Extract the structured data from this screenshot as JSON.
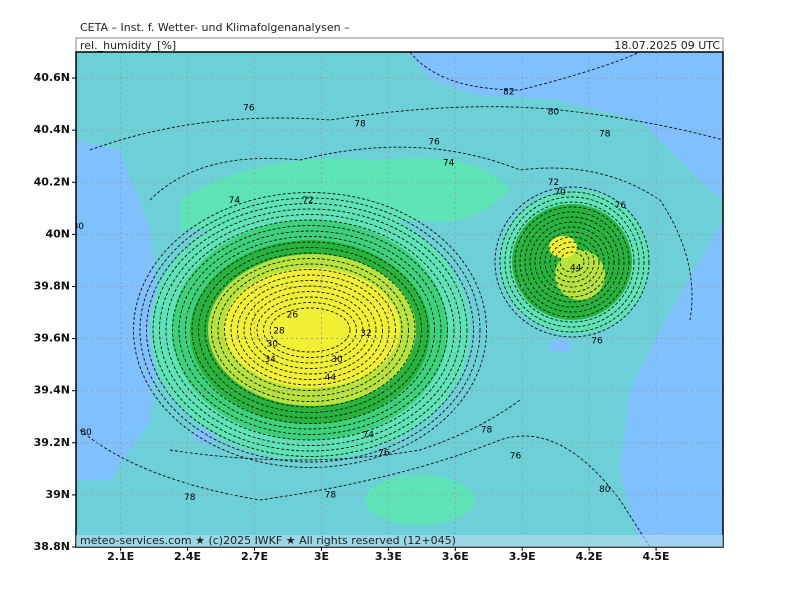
{
  "header": {
    "institute": "CETA – Inst. f. Wetter- und Klimafolgenanalysen –",
    "field": "rel._humidity_[%]",
    "valid": "18.07.2025 09 UTC"
  },
  "footer": "meteo-services.com ★ (c)2025 IWKF ★ All rights reserved (12+045)",
  "map": {
    "xlim": [
      1.9,
      4.8
    ],
    "ylim": [
      38.8,
      40.7
    ],
    "grid": true,
    "xticks": [
      {
        "value": 2.1,
        "label": "2.1E"
      },
      {
        "value": 2.4,
        "label": "2.4E"
      },
      {
        "value": 2.7,
        "label": "2.7E"
      },
      {
        "value": 3.0,
        "label": "3E"
      },
      {
        "value": 3.3,
        "label": "3.3E"
      },
      {
        "value": 3.6,
        "label": "3.6E"
      },
      {
        "value": 3.9,
        "label": "3.9E"
      },
      {
        "value": 4.2,
        "label": "4.2E"
      },
      {
        "value": 4.5,
        "label": "4.5E"
      }
    ],
    "yticks": [
      {
        "value": 38.8,
        "label": "38.8N"
      },
      {
        "value": 39.0,
        "label": "39N"
      },
      {
        "value": 39.2,
        "label": "39.2N"
      },
      {
        "value": 39.4,
        "label": "39.4N"
      },
      {
        "value": 39.6,
        "label": "39.6N"
      },
      {
        "value": 39.8,
        "label": "39.8N"
      },
      {
        "value": 40.0,
        "label": "40N"
      },
      {
        "value": 40.2,
        "label": "40.2N"
      },
      {
        "value": 40.4,
        "label": "40.4N"
      },
      {
        "value": 40.6,
        "label": "40.6N"
      }
    ],
    "contour_labels": [
      {
        "value": 76,
        "lon": 2.675,
        "lat": 40.485
      },
      {
        "value": 78,
        "lon": 3.173,
        "lat": 40.424
      },
      {
        "value": 82,
        "lon": 3.84,
        "lat": 40.546
      },
      {
        "value": 80,
        "lon": 4.04,
        "lat": 40.47
      },
      {
        "value": 78,
        "lon": 4.27,
        "lat": 40.385
      },
      {
        "value": 76,
        "lon": 3.505,
        "lat": 40.355
      },
      {
        "value": 74,
        "lon": 3.57,
        "lat": 40.274
      },
      {
        "value": 74,
        "lon": 2.61,
        "lat": 40.13
      },
      {
        "value": 72,
        "lon": 2.94,
        "lat": 40.13
      },
      {
        "value": 72,
        "lon": 4.04,
        "lat": 40.2
      },
      {
        "value": 70,
        "lon": 4.07,
        "lat": 40.16
      },
      {
        "value": 76,
        "lon": 4.34,
        "lat": 40.11
      },
      {
        "value": 80,
        "lon": 1.91,
        "lat": 40.03
      },
      {
        "value": 26,
        "lon": 2.87,
        "lat": 39.69
      },
      {
        "value": 28,
        "lon": 2.81,
        "lat": 39.63
      },
      {
        "value": 30,
        "lon": 2.78,
        "lat": 39.58
      },
      {
        "value": 32,
        "lon": 3.2,
        "lat": 39.62
      },
      {
        "value": 34,
        "lon": 2.77,
        "lat": 39.52
      },
      {
        "value": 30,
        "lon": 3.07,
        "lat": 39.52
      },
      {
        "value": 44,
        "lon": 3.04,
        "lat": 39.45
      },
      {
        "value": 44,
        "lon": 4.14,
        "lat": 39.87
      },
      {
        "value": 76,
        "lon": 4.235,
        "lat": 39.59
      },
      {
        "value": 78,
        "lon": 3.74,
        "lat": 39.25
      },
      {
        "value": 74,
        "lon": 3.21,
        "lat": 39.23
      },
      {
        "value": 76,
        "lon": 3.28,
        "lat": 39.16
      },
      {
        "value": 76,
        "lon": 3.87,
        "lat": 39.15
      },
      {
        "value": 80,
        "lon": 1.945,
        "lat": 39.24
      },
      {
        "value": 78,
        "lon": 2.41,
        "lat": 38.99
      },
      {
        "value": 78,
        "lon": 3.04,
        "lat": 39.0
      },
      {
        "value": 80,
        "lon": 4.27,
        "lat": 39.02
      }
    ]
  }
}
